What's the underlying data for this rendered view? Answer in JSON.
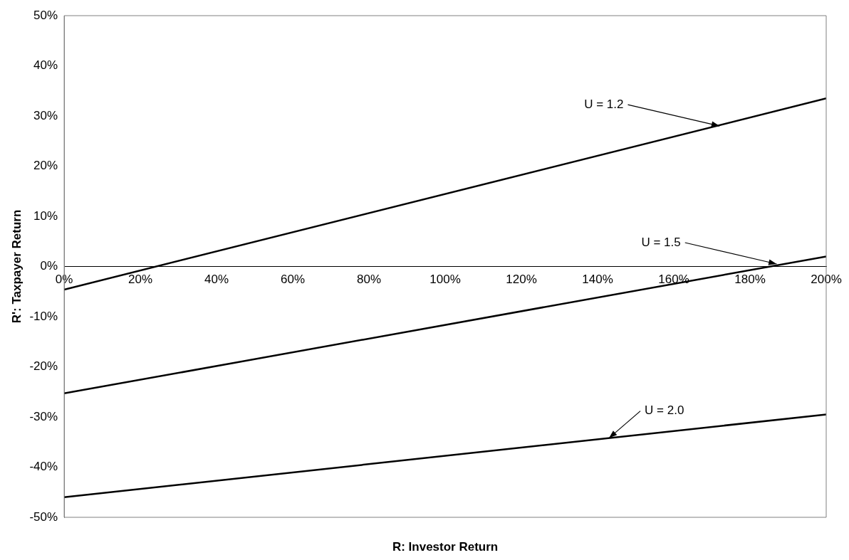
{
  "chart_data": {
    "type": "line",
    "xlabel": "R: Investor Return",
    "ylabel": "R': Taxpayer Return",
    "xlim": [
      0,
      200
    ],
    "xticks": [
      {
        "value": 0,
        "label": "0%"
      },
      {
        "value": 20,
        "label": "20%"
      },
      {
        "value": 40,
        "label": "40%"
      },
      {
        "value": 60,
        "label": "60%"
      },
      {
        "value": 80,
        "label": "80%"
      },
      {
        "value": 100,
        "label": "100%"
      },
      {
        "value": 120,
        "label": "120%"
      },
      {
        "value": 140,
        "label": "140%"
      },
      {
        "value": 160,
        "label": "160%"
      },
      {
        "value": 180,
        "label": "180%"
      },
      {
        "value": 200,
        "label": "200%"
      }
    ],
    "ylim": [
      -50,
      50
    ],
    "yticks": [
      {
        "value": -50,
        "label": "-50%"
      },
      {
        "value": -40,
        "label": "-40%"
      },
      {
        "value": -30,
        "label": "-30%"
      },
      {
        "value": -20,
        "label": "-20%"
      },
      {
        "value": -10,
        "label": "-10%"
      },
      {
        "value": 0,
        "label": "0%"
      },
      {
        "value": 10,
        "label": "10%"
      },
      {
        "value": 20,
        "label": "20%"
      },
      {
        "value": 30,
        "label": "30%"
      },
      {
        "value": 40,
        "label": "40%"
      },
      {
        "value": 50,
        "label": "50%"
      }
    ],
    "x": [
      0,
      200
    ],
    "series": [
      {
        "color": "#000000",
        "values": [
          -4.6,
          33.5
        ]
      },
      {
        "color": "#000000",
        "values": [
          -25.3,
          2
        ]
      },
      {
        "color": "#000000",
        "values": [
          -46,
          -29.5
        ]
      }
    ],
    "annotations": [
      {
        "text": "U = 1.2",
        "x": 172,
        "y": 28
      },
      {
        "text": "U = 1.5",
        "x": 187,
        "y": 0.5
      },
      {
        "text": "U = 2.0",
        "x": 143,
        "y": -34.2
      }
    ],
    "grid": false,
    "legend": false,
    "marker": "none",
    "line_style": "solid"
  }
}
